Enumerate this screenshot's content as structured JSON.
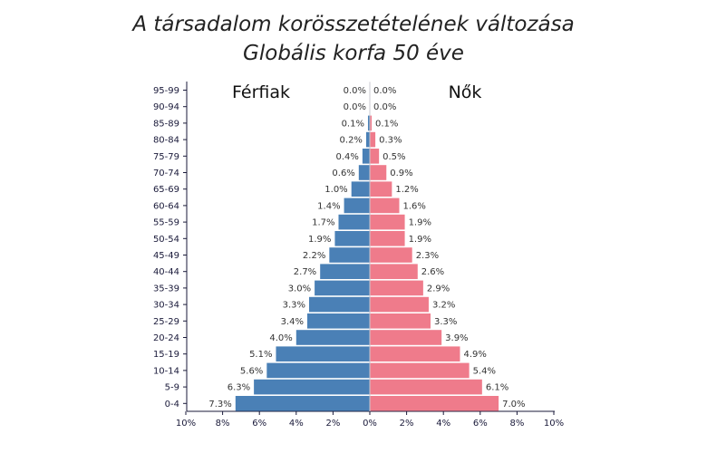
{
  "chart_data": {
    "type": "bar",
    "orientation": "horizontal-population-pyramid",
    "title": "A társadalom korösszetételének változása",
    "subtitle": "Globális korfa 50 éve",
    "left_label": "Férfiak",
    "right_label": "Nők",
    "categories": [
      "95-99",
      "90-94",
      "85-89",
      "80-84",
      "75-79",
      "70-74",
      "65-69",
      "60-64",
      "55-59",
      "50-54",
      "45-49",
      "40-44",
      "35-39",
      "30-34",
      "25-29",
      "20-24",
      "15-19",
      "10-14",
      "5-9",
      "0-4"
    ],
    "series": [
      {
        "name": "Férfiak",
        "color": "#4a80b6",
        "values": [
          0.0,
          0.0,
          0.1,
          0.2,
          0.4,
          0.6,
          1.0,
          1.4,
          1.7,
          1.9,
          2.2,
          2.7,
          3.0,
          3.3,
          3.4,
          4.0,
          5.1,
          5.6,
          6.3,
          7.3
        ],
        "labels": [
          "0.0%",
          "0.0%",
          "0.1%",
          "0.2%",
          "0.4%",
          "0.6%",
          "1.0%",
          "1.4%",
          "1.7%",
          "1.9%",
          "2.2%",
          "2.7%",
          "3.0%",
          "3.3%",
          "3.4%",
          "4.0%",
          "5.1%",
          "5.6%",
          "6.3%",
          "7.3%"
        ]
      },
      {
        "name": "Nők",
        "color": "#ef7b8b",
        "values": [
          0.0,
          0.0,
          0.1,
          0.3,
          0.5,
          0.9,
          1.2,
          1.6,
          1.9,
          1.9,
          2.3,
          2.6,
          2.9,
          3.2,
          3.3,
          3.9,
          4.9,
          5.4,
          6.1,
          7.0
        ],
        "labels": [
          "0.0%",
          "0.0%",
          "0.1%",
          "0.3%",
          "0.5%",
          "0.9%",
          "1.2%",
          "1.6%",
          "1.9%",
          "1.9%",
          "2.3%",
          "2.6%",
          "2.9%",
          "3.2%",
          "3.3%",
          "3.9%",
          "4.9%",
          "5.4%",
          "6.1%",
          "7.0%"
        ]
      }
    ],
    "xticks": [
      "10%",
      "8%",
      "6%",
      "4%",
      "2%",
      "0%",
      "2%",
      "4%",
      "6%",
      "8%",
      "10%"
    ],
    "xlim": [
      -10,
      10
    ],
    "grid": false
  }
}
